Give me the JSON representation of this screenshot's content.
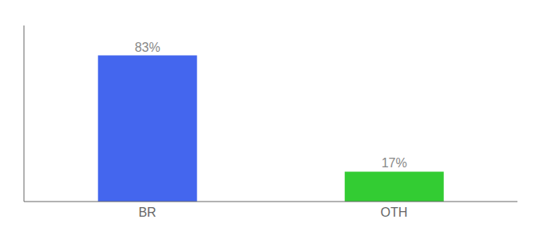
{
  "chart_data": {
    "type": "bar",
    "categories": [
      "BR",
      "OTH"
    ],
    "values": [
      83,
      17
    ],
    "value_labels": [
      "83%",
      "17%"
    ],
    "colors": [
      "#4466ee",
      "#33cc33"
    ],
    "ylim": [
      0,
      100
    ],
    "data_labels": true,
    "tick_labels": "x"
  }
}
